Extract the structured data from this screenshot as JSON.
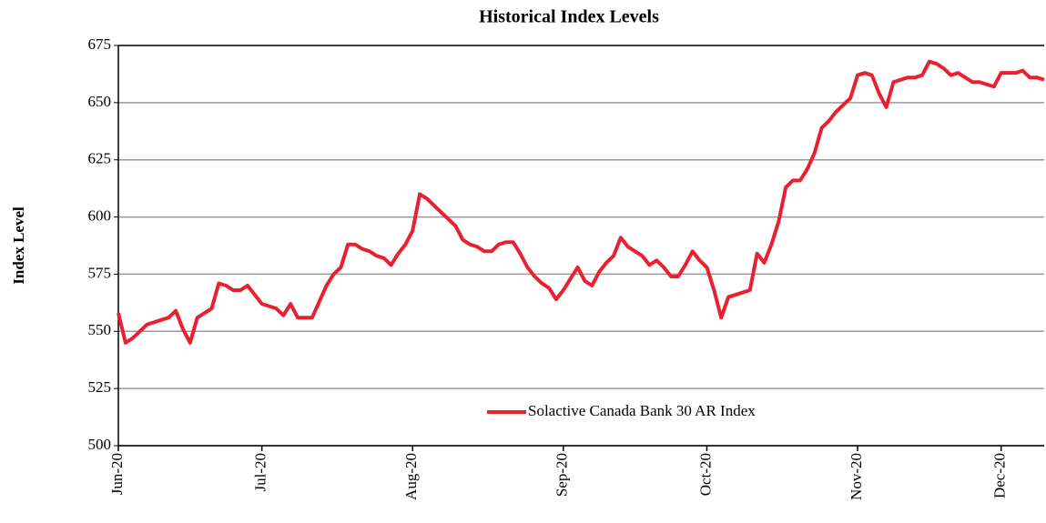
{
  "chart_data": {
    "type": "line",
    "title": "Historical Index Levels",
    "y_label": "Index Level",
    "categories": [
      "Jun-20",
      null,
      null,
      null,
      null,
      null,
      null,
      null,
      null,
      null,
      null,
      null,
      null,
      null,
      null,
      null,
      null,
      null,
      null,
      null,
      "Jul-20",
      null,
      null,
      null,
      null,
      null,
      null,
      null,
      null,
      null,
      null,
      null,
      null,
      null,
      null,
      null,
      null,
      null,
      null,
      null,
      null,
      "Aug-20",
      null,
      null,
      null,
      null,
      null,
      null,
      null,
      null,
      null,
      null,
      null,
      null,
      null,
      null,
      null,
      null,
      null,
      null,
      null,
      null,
      "Sep-20",
      null,
      null,
      null,
      null,
      null,
      null,
      null,
      null,
      null,
      null,
      null,
      null,
      null,
      null,
      null,
      null,
      null,
      null,
      null,
      "Oct-20",
      null,
      null,
      null,
      null,
      null,
      null,
      null,
      null,
      null,
      null,
      null,
      null,
      null,
      null,
      null,
      null,
      null,
      null,
      null,
      null,
      "Nov-20",
      null,
      null,
      null,
      null,
      null,
      null,
      null,
      null,
      null,
      null,
      null,
      null,
      null,
      null,
      null,
      null,
      null,
      null,
      null,
      "Dec-20",
      null,
      null,
      null,
      null,
      null,
      null
    ],
    "series": [
      {
        "name": "Solactive Canada Bank 30 AR Index",
        "color": "#e8202f",
        "values": [
          558,
          545,
          547,
          550,
          553,
          554,
          555,
          556,
          559,
          551,
          545,
          556,
          558,
          560,
          571,
          570,
          568,
          568,
          570,
          566,
          562,
          561,
          560,
          557,
          562,
          556,
          556,
          556,
          563,
          570,
          575,
          578,
          588,
          588,
          586,
          585,
          583,
          582,
          579,
          584,
          588,
          594,
          610,
          608,
          605,
          602,
          599,
          596,
          590,
          588,
          587,
          585,
          585,
          588,
          589,
          589,
          584,
          578,
          574,
          571,
          569,
          564,
          568,
          573,
          578,
          572,
          570,
          576,
          580,
          583,
          591,
          587,
          585,
          583,
          579,
          581,
          578,
          574,
          574,
          579,
          585,
          581,
          578,
          568,
          556,
          565,
          566,
          567,
          568,
          584,
          580,
          588,
          598,
          613,
          616,
          616,
          621,
          628,
          639,
          642,
          646,
          649,
          652,
          662,
          663,
          662,
          654,
          648,
          659,
          660,
          661,
          661,
          662,
          668,
          667,
          665,
          662,
          663,
          661,
          659,
          659,
          658,
          657,
          663,
          663,
          663,
          664,
          661,
          661,
          660
        ]
      }
    ],
    "ylim": [
      500,
      675
    ],
    "yticks": [
      500,
      525,
      550,
      575,
      600,
      625,
      650,
      675
    ],
    "grid": true,
    "legend": "lower center"
  }
}
